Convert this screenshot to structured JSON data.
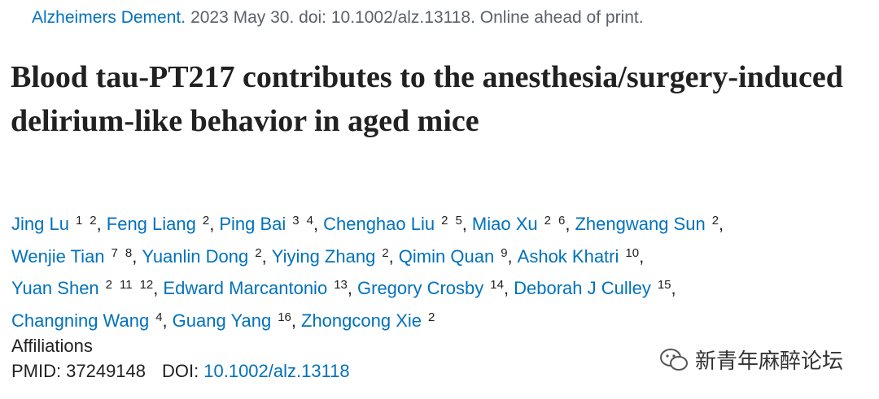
{
  "citation": {
    "journal": "Alzheimers Dement.",
    "details": "2023 May 30. doi: 10.1002/alz.13118. Online ahead of print."
  },
  "title": "Blood tau-PT217 contributes to the anesthesia/surgery-induced delirium-like behavior in aged mice",
  "author_lines": [
    [
      {
        "name": "Jing Lu",
        "affiliations": [
          "1",
          "2"
        ]
      },
      {
        "name": "Feng Liang",
        "affiliations": [
          "2"
        ]
      },
      {
        "name": "Ping Bai",
        "affiliations": [
          "3",
          "4"
        ]
      },
      {
        "name": "Chenghao Liu",
        "affiliations": [
          "2",
          "5"
        ]
      },
      {
        "name": "Miao Xu",
        "affiliations": [
          "2",
          "6"
        ]
      },
      {
        "name": "Zhengwang Sun",
        "affiliations": [
          "2"
        ]
      }
    ],
    [
      {
        "name": "Wenjie Tian",
        "affiliations": [
          "7",
          "8"
        ]
      },
      {
        "name": "Yuanlin Dong",
        "affiliations": [
          "2"
        ]
      },
      {
        "name": "Yiying Zhang",
        "affiliations": [
          "2"
        ]
      },
      {
        "name": "Qimin Quan",
        "affiliations": [
          "9"
        ]
      },
      {
        "name": "Ashok Khatri",
        "affiliations": [
          "10"
        ]
      }
    ],
    [
      {
        "name": "Yuan Shen",
        "affiliations": [
          "2",
          "11",
          "12"
        ]
      },
      {
        "name": "Edward Marcantonio",
        "affiliations": [
          "13"
        ]
      },
      {
        "name": "Gregory Crosby",
        "affiliations": [
          "14"
        ]
      },
      {
        "name": "Deborah J Culley",
        "affiliations": [
          "15"
        ]
      }
    ],
    [
      {
        "name": "Changning Wang",
        "affiliations": [
          "4"
        ]
      },
      {
        "name": "Guang Yang",
        "affiliations": [
          "16"
        ]
      },
      {
        "name": "Zhongcong Xie",
        "affiliations": [
          "2"
        ]
      }
    ]
  ],
  "affiliations_label": "Affiliations",
  "identifiers": {
    "pmid_label": "PMID:",
    "pmid": "37249148",
    "doi_label": "DOI:",
    "doi": "10.1002/alz.13118"
  },
  "watermark": "新青年麻醉论坛"
}
